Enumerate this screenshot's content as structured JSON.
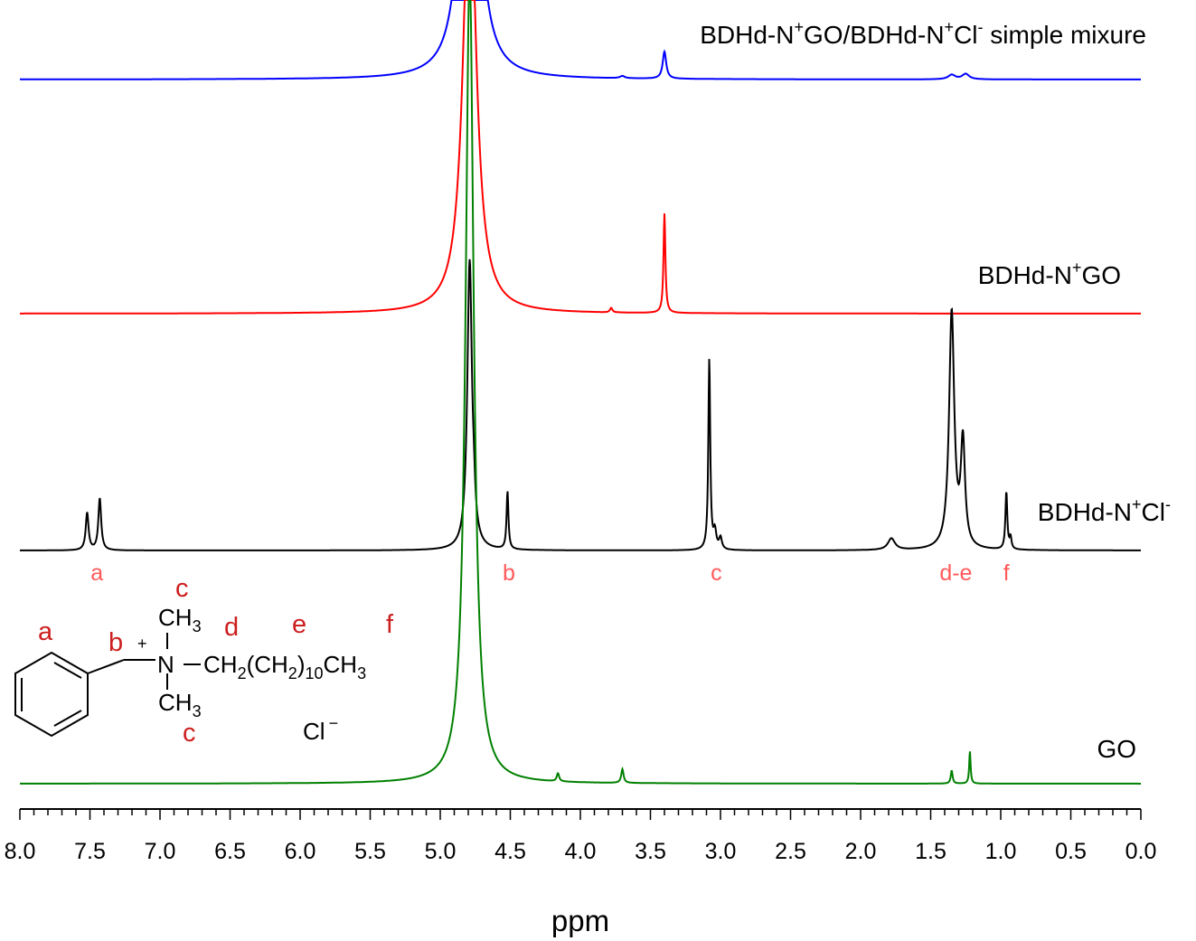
{
  "chart_data": {
    "type": "line",
    "title": "",
    "xlabel": "ppm",
    "ylabel": "",
    "xlim": [
      8.0,
      0.0
    ],
    "x_reversed": true,
    "grid": false,
    "x_ticks": [
      "8.0",
      "7.5",
      "7.0",
      "6.5",
      "6.0",
      "5.5",
      "5.0",
      "4.5",
      "4.0",
      "3.5",
      "3.0",
      "2.5",
      "2.0",
      "1.5",
      "1.0",
      "0.5",
      "0.0"
    ],
    "series": [
      {
        "name": "BDHd-N+GO/BDHd-N+Cl- simple mixure",
        "color": "#0000ff",
        "peaks": [
          {
            "ppm": 4.79,
            "height": 1.0,
            "width": 0.06
          },
          {
            "ppm": 3.4,
            "height": 0.06,
            "width": 0.015
          },
          {
            "ppm": 3.7,
            "height": 0.005,
            "width": 0.02
          },
          {
            "ppm": 1.35,
            "height": 0.01,
            "width": 0.03
          },
          {
            "ppm": 1.25,
            "height": 0.012,
            "width": 0.03
          }
        ]
      },
      {
        "name": "BDHd-N+GO",
        "color": "#ff0000",
        "peaks": [
          {
            "ppm": 4.79,
            "height": 1.0,
            "width": 0.055
          },
          {
            "ppm": 3.4,
            "height": 0.22,
            "width": 0.008
          },
          {
            "ppm": 3.78,
            "height": 0.01,
            "width": 0.01
          }
        ]
      },
      {
        "name": "BDHd-N+Cl-",
        "color": "#000000",
        "peaks": [
          {
            "ppm": 7.52,
            "height": 0.13,
            "width": 0.012
          },
          {
            "ppm": 7.43,
            "height": 0.18,
            "width": 0.012
          },
          {
            "ppm": 4.79,
            "height": 1.0,
            "width": 0.02
          },
          {
            "ppm": 4.76,
            "height": 0.07,
            "width": 0.01
          },
          {
            "ppm": 4.52,
            "height": 0.2,
            "width": 0.008
          },
          {
            "ppm": 3.08,
            "height": 0.66,
            "width": 0.008
          },
          {
            "ppm": 3.04,
            "height": 0.06,
            "width": 0.012
          },
          {
            "ppm": 3.0,
            "height": 0.04,
            "width": 0.012
          },
          {
            "ppm": 1.78,
            "height": 0.04,
            "width": 0.03
          },
          {
            "ppm": 1.35,
            "height": 0.82,
            "width": 0.022
          },
          {
            "ppm": 1.27,
            "height": 0.36,
            "width": 0.018
          },
          {
            "ppm": 0.96,
            "height": 0.2,
            "width": 0.008
          },
          {
            "ppm": 0.93,
            "height": 0.04,
            "width": 0.008
          }
        ]
      },
      {
        "name": "GO",
        "color": "#008000",
        "peaks": [
          {
            "ppm": 4.79,
            "height": 1.0,
            "width": 0.035
          },
          {
            "ppm": 4.16,
            "height": 0.01,
            "width": 0.01
          },
          {
            "ppm": 3.7,
            "height": 0.017,
            "width": 0.01
          },
          {
            "ppm": 1.35,
            "height": 0.016,
            "width": 0.008
          },
          {
            "ppm": 1.22,
            "height": 0.04,
            "width": 0.006
          }
        ]
      }
    ],
    "peak_labels": [
      {
        "text": "a",
        "ppm": 7.45
      },
      {
        "text": "b",
        "ppm": 4.51
      },
      {
        "text": "c",
        "ppm": 3.03
      },
      {
        "text": "d-e",
        "ppm": 1.32
      },
      {
        "text": "f",
        "ppm": 0.96
      }
    ]
  },
  "structure": {
    "labels": [
      "a",
      "b",
      "c",
      "c",
      "d",
      "e",
      "f"
    ],
    "plus": "+",
    "n": "N",
    "ch3": "CH",
    "sub3": "3",
    "ch2": "CH",
    "sub2": "2",
    "chain_open": "(CH",
    "chain_close": ")",
    "sub10": "10",
    "counterion": "Cl",
    "minus": "−"
  }
}
